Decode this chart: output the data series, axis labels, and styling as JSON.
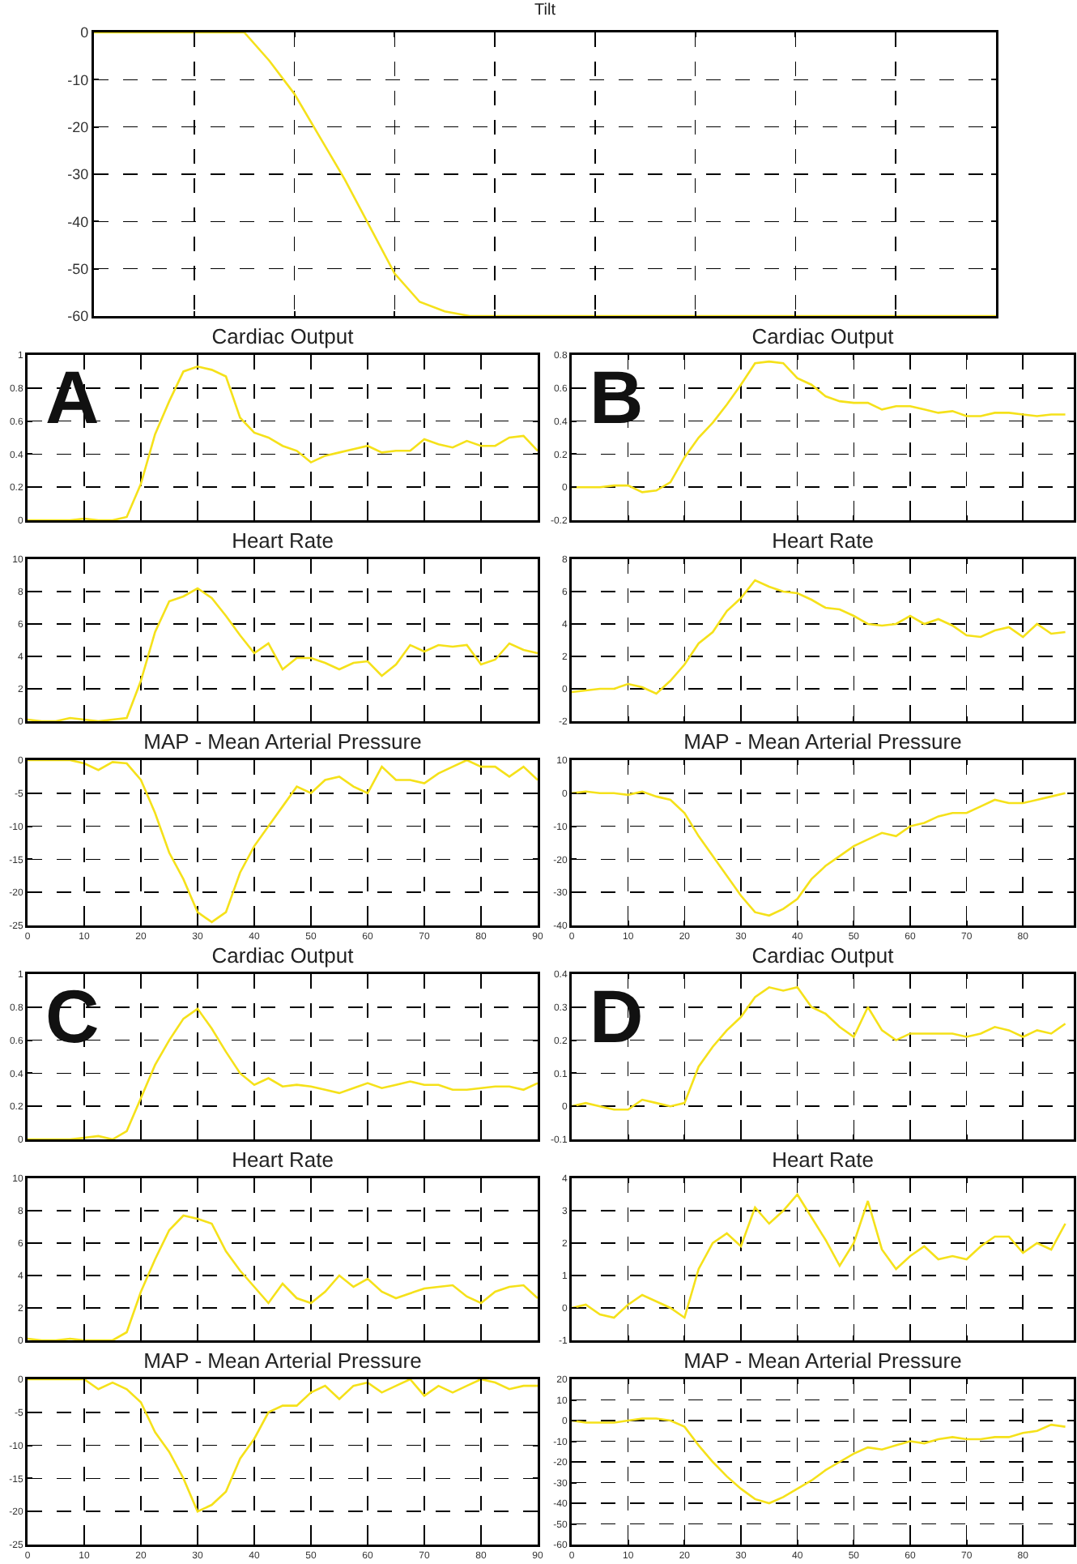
{
  "chart_data": [
    {
      "type": "line",
      "title": "Tilt",
      "categories": [
        null,
        null,
        null,
        null,
        null,
        null,
        null,
        null,
        null,
        null,
        null,
        null,
        null,
        null,
        null,
        null,
        null,
        null,
        null,
        null,
        null,
        null,
        null,
        null,
        null,
        null,
        null,
        null,
        null,
        null,
        null,
        null,
        null,
        null,
        null,
        null,
        null
      ],
      "ylim": [
        -60,
        0
      ],
      "yticks": [
        -60,
        -50,
        -40,
        -30,
        -20,
        -10,
        0
      ],
      "grid": true,
      "tick_labels": "y",
      "series": [
        {
          "color": "#f5e11a",
          "values": [
            0,
            0,
            0,
            0,
            0,
            0,
            0,
            -6,
            -13,
            -22,
            -31,
            -41,
            -51,
            -57,
            -59,
            -60,
            -60,
            -60,
            -60,
            -60,
            -60,
            -60,
            -60,
            -60,
            -60,
            -60,
            -60,
            -60,
            -60,
            -60,
            -60,
            -60,
            -60,
            -60,
            -60,
            -60,
            -60
          ]
        }
      ]
    },
    {
      "type": "line",
      "title": "Cardiac Output",
      "annotations": [
        "A"
      ],
      "x": [
        0,
        2.5,
        5,
        7.5,
        10,
        12.5,
        15,
        17.5,
        20,
        22.5,
        25,
        27.5,
        30,
        32.5,
        35,
        37.5,
        40,
        42.5,
        45,
        47.5,
        50,
        52.5,
        55,
        57.5,
        60,
        62.5,
        65,
        67.5,
        70,
        72.5,
        75,
        77.5,
        80,
        82.5,
        85,
        87.5,
        90
      ],
      "xlim": [
        0,
        90
      ],
      "xticks": [
        0,
        10,
        20,
        30,
        40,
        50,
        60,
        70,
        80,
        90
      ],
      "ylim": [
        0,
        1
      ],
      "yticks": [
        0,
        0.2,
        0.4,
        0.6,
        0.8,
        1
      ],
      "grid": true,
      "tick_labels": "y",
      "series": [
        {
          "color": "#f5e11a",
          "values": [
            0,
            0,
            0,
            0,
            0.01,
            0,
            0,
            0.02,
            0.22,
            0.52,
            0.72,
            0.9,
            0.93,
            0.91,
            0.87,
            0.62,
            0.53,
            0.5,
            0.45,
            0.42,
            0.35,
            0.39,
            0.41,
            0.43,
            0.45,
            0.41,
            0.42,
            0.42,
            0.49,
            0.46,
            0.44,
            0.48,
            0.45,
            0.45,
            0.5,
            0.51,
            0.42
          ]
        }
      ]
    },
    {
      "type": "line",
      "title": "Heart Rate",
      "x": [
        0,
        2.5,
        5,
        7.5,
        10,
        12.5,
        15,
        17.5,
        20,
        22.5,
        25,
        27.5,
        30,
        32.5,
        35,
        37.5,
        40,
        42.5,
        45,
        47.5,
        50,
        52.5,
        55,
        57.5,
        60,
        62.5,
        65,
        67.5,
        70,
        72.5,
        75,
        77.5,
        80,
        82.5,
        85,
        87.5,
        90
      ],
      "xlim": [
        0,
        90
      ],
      "xticks": [
        0,
        10,
        20,
        30,
        40,
        50,
        60,
        70,
        80,
        90
      ],
      "ylim": [
        0,
        10
      ],
      "yticks": [
        0,
        2,
        4,
        6,
        8,
        10
      ],
      "grid": true,
      "tick_labels": "y",
      "series": [
        {
          "color": "#f5e11a",
          "values": [
            0.1,
            0,
            0,
            0.2,
            0.1,
            0,
            0.1,
            0.2,
            2.5,
            5.5,
            7.4,
            7.7,
            8.2,
            7.6,
            6.5,
            5.3,
            4.2,
            4.8,
            3.2,
            3.9,
            3.9,
            3.6,
            3.2,
            3.6,
            3.7,
            2.8,
            3.5,
            4.7,
            4.3,
            4.7,
            4.6,
            4.7,
            3.5,
            3.8,
            4.8,
            4.4,
            4.2
          ]
        }
      ]
    },
    {
      "type": "line",
      "title": "MAP - Mean Arterial Pressure",
      "x": [
        0,
        2.5,
        5,
        7.5,
        10,
        12.5,
        15,
        17.5,
        20,
        22.5,
        25,
        27.5,
        30,
        32.5,
        35,
        37.5,
        40,
        42.5,
        45,
        47.5,
        50,
        52.5,
        55,
        57.5,
        60,
        62.5,
        65,
        67.5,
        70,
        72.5,
        75,
        77.5,
        80,
        82.5,
        85,
        87.5,
        90
      ],
      "xlim": [
        0,
        90
      ],
      "xticks": [
        0,
        10,
        20,
        30,
        40,
        50,
        60,
        70,
        80,
        90
      ],
      "ylim": [
        -25,
        0
      ],
      "yticks": [
        -25,
        -20,
        -15,
        -10,
        -5,
        0
      ],
      "grid": true,
      "series": [
        {
          "color": "#f5e11a",
          "values": [
            0,
            0,
            0,
            0,
            -0.5,
            -1.5,
            -0.3,
            -0.5,
            -3,
            -8,
            -14,
            -18,
            -23,
            -24.5,
            -23,
            -17,
            -13,
            -10,
            -7,
            -4,
            -5,
            -3,
            -2.5,
            -4,
            -5,
            -1,
            -3,
            -3,
            -3.5,
            -2,
            -1,
            0,
            -1,
            -1,
            -2.5,
            -1,
            -3
          ]
        }
      ]
    },
    {
      "type": "line",
      "title": "Cardiac Output",
      "annotations": [
        "B"
      ],
      "x": [
        0,
        2.5,
        5,
        7.5,
        10,
        12.5,
        15,
        17.5,
        20,
        22.5,
        25,
        27.5,
        30,
        32.5,
        35,
        37.5,
        40,
        42.5,
        45,
        47.5,
        50,
        52.5,
        55,
        57.5,
        60,
        62.5,
        65,
        67.5,
        70,
        72.5,
        75,
        77.5,
        80,
        82.5,
        85,
        87.5
      ],
      "xlim": [
        0,
        89
      ],
      "xticks": [
        0,
        10,
        20,
        30,
        40,
        50,
        60,
        70,
        80
      ],
      "ylim": [
        -0.2,
        0.8
      ],
      "yticks": [
        -0.2,
        0,
        0.2,
        0.4,
        0.6,
        0.8
      ],
      "grid": true,
      "tick_labels": "y",
      "series": [
        {
          "color": "#f5e11a",
          "values": [
            0,
            0,
            0,
            0.01,
            0.01,
            -0.03,
            -0.02,
            0.03,
            0.18,
            0.3,
            0.39,
            0.5,
            0.62,
            0.75,
            0.76,
            0.75,
            0.66,
            0.62,
            0.55,
            0.52,
            0.51,
            0.51,
            0.47,
            0.49,
            0.49,
            0.47,
            0.45,
            0.46,
            0.43,
            0.43,
            0.45,
            0.45,
            0.44,
            0.43,
            0.44,
            0.44
          ]
        }
      ]
    },
    {
      "type": "line",
      "title": "Heart Rate",
      "x": [
        0,
        2.5,
        5,
        7.5,
        10,
        12.5,
        15,
        17.5,
        20,
        22.5,
        25,
        27.5,
        30,
        32.5,
        35,
        37.5,
        40,
        42.5,
        45,
        47.5,
        50,
        52.5,
        55,
        57.5,
        60,
        62.5,
        65,
        67.5,
        70,
        72.5,
        75,
        77.5,
        80,
        82.5,
        85,
        87.5
      ],
      "xlim": [
        0,
        89
      ],
      "xticks": [
        0,
        10,
        20,
        30,
        40,
        50,
        60,
        70,
        80
      ],
      "ylim": [
        -2,
        8
      ],
      "yticks": [
        -2,
        0,
        2,
        4,
        6,
        8
      ],
      "grid": true,
      "tick_labels": "y",
      "series": [
        {
          "color": "#f5e11a",
          "values": [
            -0.2,
            -0.1,
            0,
            0,
            0.3,
            0.1,
            -0.3,
            0.5,
            1.5,
            2.8,
            3.5,
            4.8,
            5.6,
            6.7,
            6.3,
            6,
            5.9,
            5.5,
            5,
            4.9,
            4.5,
            4,
            3.9,
            4,
            4.5,
            4,
            4.3,
            3.9,
            3.3,
            3.2,
            3.6,
            3.8,
            3.2,
            4,
            3.4,
            3.5
          ]
        }
      ]
    },
    {
      "type": "line",
      "title": "MAP - Mean Arterial Pressure",
      "x": [
        0,
        2.5,
        5,
        7.5,
        10,
        12.5,
        15,
        17.5,
        20,
        22.5,
        25,
        27.5,
        30,
        32.5,
        35,
        37.5,
        40,
        42.5,
        45,
        47.5,
        50,
        52.5,
        55,
        57.5,
        60,
        62.5,
        65,
        67.5,
        70,
        72.5,
        75,
        77.5,
        80,
        82.5,
        85,
        87.5
      ],
      "xlim": [
        0,
        89
      ],
      "xticks": [
        0,
        10,
        20,
        30,
        40,
        50,
        60,
        70,
        80
      ],
      "ylim": [
        -40,
        10
      ],
      "yticks": [
        -40,
        -30,
        -20,
        -10,
        0,
        10
      ],
      "grid": true,
      "series": [
        {
          "color": "#f5e11a",
          "values": [
            0,
            0.5,
            0,
            0,
            -0.5,
            0.5,
            -1,
            -2,
            -6,
            -13,
            -19,
            -25,
            -31,
            -36,
            -37,
            -35,
            -32,
            -26,
            -22,
            -19,
            -16,
            -14,
            -12,
            -13,
            -10,
            -9,
            -7,
            -6,
            -6,
            -4,
            -2,
            -3,
            -3,
            -2,
            -1,
            0
          ]
        }
      ]
    },
    {
      "type": "line",
      "title": "Cardiac Output",
      "annotations": [
        "C"
      ],
      "x": [
        0,
        2.5,
        5,
        7.5,
        10,
        12.5,
        15,
        17.5,
        20,
        22.5,
        25,
        27.5,
        30,
        32.5,
        35,
        37.5,
        40,
        42.5,
        45,
        47.5,
        50,
        52.5,
        55,
        57.5,
        60,
        62.5,
        65,
        67.5,
        70,
        72.5,
        75,
        77.5,
        80,
        82.5,
        85,
        87.5,
        90
      ],
      "xlim": [
        0,
        90
      ],
      "xticks": [
        0,
        10,
        20,
        30,
        40,
        50,
        60,
        70,
        80,
        90
      ],
      "ylim": [
        0,
        1
      ],
      "yticks": [
        0,
        0.2,
        0.4,
        0.6,
        0.8,
        1
      ],
      "grid": true,
      "tick_labels": "y",
      "series": [
        {
          "color": "#f5e11a",
          "values": [
            0,
            0,
            0,
            0,
            0.01,
            0.02,
            0,
            0.05,
            0.25,
            0.45,
            0.6,
            0.73,
            0.79,
            0.67,
            0.53,
            0.4,
            0.33,
            0.37,
            0.32,
            0.33,
            0.32,
            0.3,
            0.28,
            0.31,
            0.34,
            0.31,
            0.33,
            0.35,
            0.33,
            0.33,
            0.3,
            0.3,
            0.31,
            0.32,
            0.32,
            0.3,
            0.34
          ]
        }
      ]
    },
    {
      "type": "line",
      "title": "Heart Rate",
      "x": [
        0,
        2.5,
        5,
        7.5,
        10,
        12.5,
        15,
        17.5,
        20,
        22.5,
        25,
        27.5,
        30,
        32.5,
        35,
        37.5,
        40,
        42.5,
        45,
        47.5,
        50,
        52.5,
        55,
        57.5,
        60,
        62.5,
        65,
        67.5,
        70,
        72.5,
        75,
        77.5,
        80,
        82.5,
        85,
        87.5,
        90
      ],
      "xlim": [
        0,
        90
      ],
      "xticks": [
        0,
        10,
        20,
        30,
        40,
        50,
        60,
        70,
        80,
        90
      ],
      "ylim": [
        0,
        10
      ],
      "yticks": [
        0,
        2,
        4,
        6,
        8,
        10
      ],
      "grid": true,
      "tick_labels": "y",
      "series": [
        {
          "color": "#f5e11a",
          "values": [
            0.1,
            0,
            0,
            0.1,
            0,
            0,
            0,
            0.5,
            3,
            5,
            6.8,
            7.7,
            7.5,
            7.2,
            5.5,
            4.3,
            3.3,
            2.3,
            3.5,
            2.6,
            2.3,
            3,
            4,
            3.3,
            3.8,
            3,
            2.6,
            2.9,
            3.2,
            3.3,
            3.4,
            2.7,
            2.3,
            3,
            3.3,
            3.4,
            2.6
          ]
        }
      ]
    },
    {
      "type": "line",
      "title": "MAP - Mean Arterial Pressure",
      "x": [
        0,
        2.5,
        5,
        7.5,
        10,
        12.5,
        15,
        17.5,
        20,
        22.5,
        25,
        27.5,
        30,
        32.5,
        35,
        37.5,
        40,
        42.5,
        45,
        47.5,
        50,
        52.5,
        55,
        57.5,
        60,
        62.5,
        65,
        67.5,
        70,
        72.5,
        75,
        77.5,
        80,
        82.5,
        85,
        87.5,
        90
      ],
      "xlim": [
        0,
        90
      ],
      "xticks": [
        0,
        10,
        20,
        30,
        40,
        50,
        60,
        70,
        80,
        90
      ],
      "ylim": [
        -25,
        0
      ],
      "yticks": [
        -25,
        -20,
        -15,
        -10,
        -5,
        0
      ],
      "grid": true,
      "series": [
        {
          "color": "#f5e11a",
          "values": [
            0,
            0,
            0,
            0,
            0,
            -1.5,
            -0.5,
            -1.5,
            -3.5,
            -8,
            -11,
            -15,
            -20,
            -19,
            -17,
            -12,
            -9,
            -5,
            -4,
            -4,
            -2,
            -1,
            -3,
            -1,
            -0.5,
            -2,
            -1,
            0,
            -2.5,
            -1,
            -2,
            -1,
            0,
            -0.5,
            -1.5,
            -1,
            -1
          ]
        }
      ]
    },
    {
      "type": "line",
      "title": "Cardiac Output",
      "annotations": [
        "D"
      ],
      "x": [
        0,
        2.5,
        5,
        7.5,
        10,
        12.5,
        15,
        17.5,
        20,
        22.5,
        25,
        27.5,
        30,
        32.5,
        35,
        37.5,
        40,
        42.5,
        45,
        47.5,
        50,
        52.5,
        55,
        57.5,
        60,
        62.5,
        65,
        67.5,
        70,
        72.5,
        75,
        77.5,
        80,
        82.5,
        85,
        87.5
      ],
      "xlim": [
        0,
        89
      ],
      "xticks": [
        0,
        10,
        20,
        30,
        40,
        50,
        60,
        70,
        80
      ],
      "ylim": [
        -0.1,
        0.4
      ],
      "yticks": [
        -0.1,
        0,
        0.1,
        0.2,
        0.3,
        0.4
      ],
      "grid": true,
      "tick_labels": "y",
      "series": [
        {
          "color": "#f5e11a",
          "values": [
            0,
            0.01,
            0,
            -0.01,
            -0.01,
            0.02,
            0.01,
            0,
            0.01,
            0.12,
            0.18,
            0.23,
            0.27,
            0.33,
            0.36,
            0.35,
            0.36,
            0.3,
            0.28,
            0.24,
            0.21,
            0.3,
            0.23,
            0.2,
            0.22,
            0.22,
            0.22,
            0.22,
            0.21,
            0.22,
            0.24,
            0.23,
            0.21,
            0.23,
            0.22,
            0.25
          ]
        }
      ]
    },
    {
      "type": "line",
      "title": "Heart Rate",
      "x": [
        0,
        2.5,
        5,
        7.5,
        10,
        12.5,
        15,
        17.5,
        20,
        22.5,
        25,
        27.5,
        30,
        32.5,
        35,
        37.5,
        40,
        42.5,
        45,
        47.5,
        50,
        52.5,
        55,
        57.5,
        60,
        62.5,
        65,
        67.5,
        70,
        72.5,
        75,
        77.5,
        80,
        82.5,
        85,
        87.5
      ],
      "xlim": [
        0,
        89
      ],
      "xticks": [
        0,
        10,
        20,
        30,
        40,
        50,
        60,
        70,
        80
      ],
      "ylim": [
        -1,
        4
      ],
      "yticks": [
        -1,
        0,
        1,
        2,
        3,
        4
      ],
      "grid": true,
      "tick_labels": "y",
      "series": [
        {
          "color": "#f5e11a",
          "values": [
            0,
            0.1,
            -0.2,
            -0.3,
            0.1,
            0.4,
            0.2,
            0,
            -0.3,
            1.2,
            2,
            2.3,
            1.9,
            3.1,
            2.6,
            3,
            3.5,
            2.8,
            2.1,
            1.3,
            2,
            3.3,
            1.8,
            1.2,
            1.6,
            1.9,
            1.5,
            1.6,
            1.5,
            1.9,
            2.2,
            2.2,
            1.7,
            2,
            1.8,
            2.6
          ]
        }
      ]
    },
    {
      "type": "line",
      "title": "MAP - Mean Arterial Pressure",
      "x": [
        0,
        2.5,
        5,
        7.5,
        10,
        12.5,
        15,
        17.5,
        20,
        22.5,
        25,
        27.5,
        30,
        32.5,
        35,
        37.5,
        40,
        42.5,
        45,
        47.5,
        50,
        52.5,
        55,
        57.5,
        60,
        62.5,
        65,
        67.5,
        70,
        72.5,
        75,
        77.5,
        80,
        82.5,
        85,
        87.5
      ],
      "xlim": [
        0,
        89
      ],
      "xticks": [
        0,
        10,
        20,
        30,
        40,
        50,
        60,
        70,
        80
      ],
      "ylim": [
        -60,
        20
      ],
      "yticks": [
        -60,
        -50,
        -40,
        -30,
        -20,
        -10,
        0,
        10,
        20
      ],
      "grid": true,
      "series": [
        {
          "color": "#f5e11a",
          "values": [
            0,
            -1,
            -1,
            -1,
            0,
            1,
            1,
            0,
            -3,
            -12,
            -20,
            -27,
            -33,
            -38,
            -40,
            -37,
            -33,
            -29,
            -24,
            -20,
            -16,
            -13,
            -14,
            -12,
            -10,
            -11,
            -9,
            -8,
            -9,
            -9,
            -8,
            -8,
            -6,
            -5,
            -2,
            -3
          ]
        }
      ]
    }
  ]
}
